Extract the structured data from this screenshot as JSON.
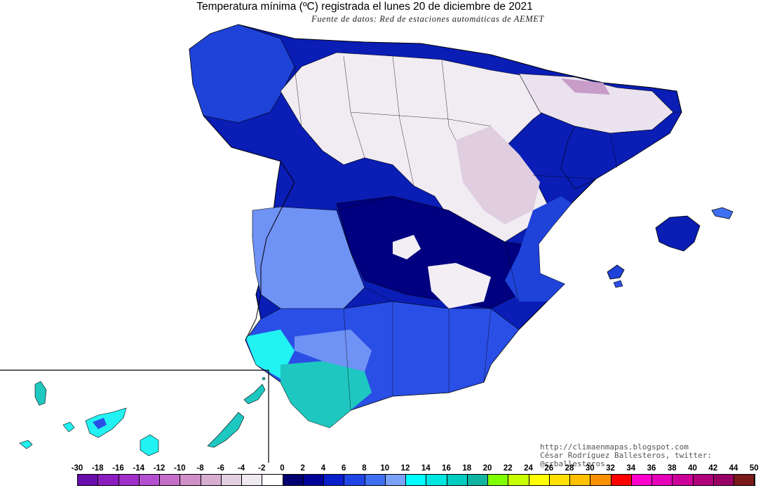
{
  "header": {
    "title": "Temperatura mínima (ºC) registrada el lunes 20 de diciembre de 2021",
    "subtitle": "Fuente de datos: Red de estaciones automáticas de AEMET"
  },
  "credits": {
    "website": "http://climaenmapas.blogspot.com",
    "author": "César Rodríguez Ballesteros, twitter: @crballesteros"
  },
  "legend": {
    "labels": [
      "-30",
      "-18",
      "-16",
      "-14",
      "-12",
      "-10",
      "-8",
      "-6",
      "-4",
      "-2",
      "0",
      "2",
      "4",
      "6",
      "8",
      "10",
      "12",
      "14",
      "16",
      "18",
      "20",
      "22",
      "24",
      "26",
      "28",
      "30",
      "32",
      "34",
      "36",
      "38",
      "40",
      "42",
      "44",
      "50"
    ],
    "colors": [
      "#6a0dad",
      "#8b1dc0",
      "#9f2fc8",
      "#b44fd0",
      "#c46ec8",
      "#d08fc6",
      "#d8aed0",
      "#e4cfe2",
      "#eeeaf0",
      "#ffffff",
      "#000070",
      "#000099",
      "#0a1fcc",
      "#2146e6",
      "#3f6ff2",
      "#7aa2fa",
      "#00ffff",
      "#00e6e0",
      "#00ccc0",
      "#10b3a0",
      "#80ff00",
      "#c8ff00",
      "#ffff00",
      "#ffe000",
      "#ffc000",
      "#ff9000",
      "#ff0000",
      "#ff00cc",
      "#e600b8",
      "#cc0099",
      "#b0007a",
      "#990066",
      "#7a1a1a"
    ]
  },
  "map": {
    "region": "España peninsular, Baleares y Canarias",
    "palette": {
      "cold_white": "#f0ecf2",
      "pink": "#e0cde0",
      "magenta": "#c79cc9",
      "navy": "#000080",
      "dark_blue": "#0a1db5",
      "blue": "#2a4fe6",
      "light_blue": "#6f92f5",
      "cyan": "#22f2f2",
      "teal": "#1ec8c0",
      "border": "#000000"
    }
  }
}
